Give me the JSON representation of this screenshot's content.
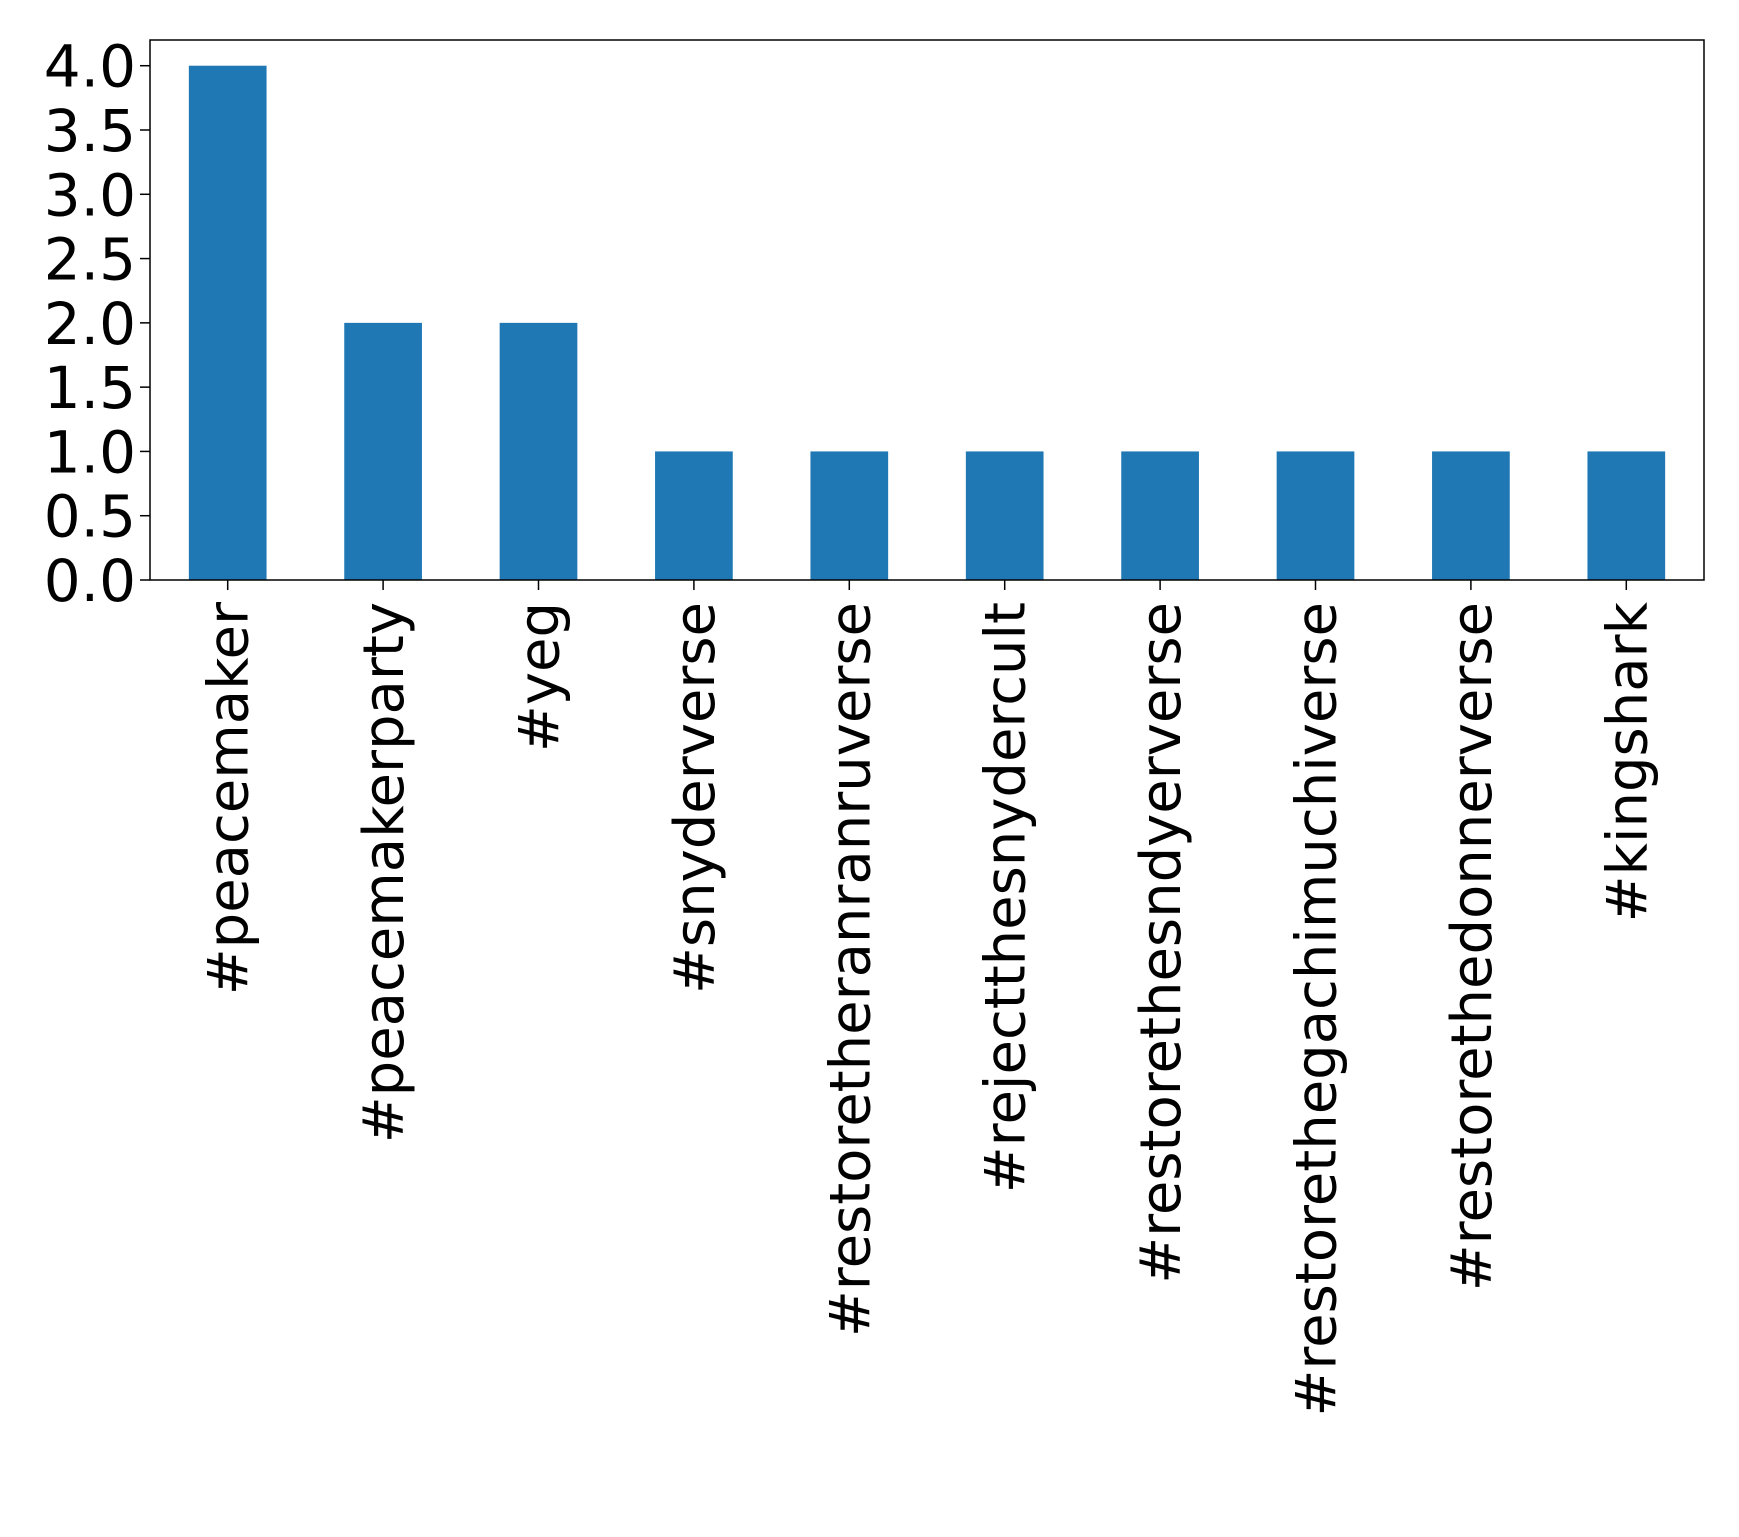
{
  "chart_data": {
    "type": "bar",
    "categories": [
      "#peacemaker",
      "#peacemakerparty",
      "#yeg",
      "#snyderverse",
      "#restoretheranranruverse",
      "#rejectthesnydercult",
      "#restorethesndyerverse",
      "#restorethegachimuchiverse",
      "#restorethedonnerverse",
      "#kingshark"
    ],
    "values": [
      4,
      2,
      2,
      1,
      1,
      1,
      1,
      1,
      1,
      1
    ],
    "ylim": [
      0,
      4.2
    ],
    "yticks": [
      "0.0",
      "0.5",
      "1.0",
      "1.5",
      "2.0",
      "2.5",
      "3.0",
      "3.5",
      "4.0"
    ],
    "grid": false,
    "legend": "none",
    "bar_color": "#1f77b4"
  }
}
